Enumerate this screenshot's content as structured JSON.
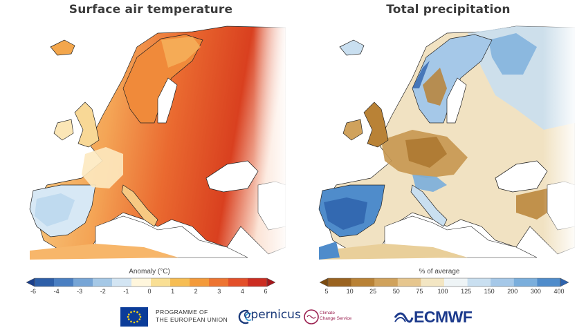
{
  "titles": {
    "left": "Surface air temperature",
    "right": "Total precipitation"
  },
  "colorbars": {
    "left": {
      "label": "Anomaly (°C)",
      "ticks": [
        "-6",
        "-4",
        "-3",
        "-2",
        "-1",
        "0",
        "1",
        "2",
        "3",
        "4",
        "6"
      ],
      "colors": [
        "#1b3f8b",
        "#2e5fa8",
        "#4a7fc2",
        "#76a5d6",
        "#a5c8e6",
        "#d3e5f3",
        "#fff6dc",
        "#f9df94",
        "#f6bd53",
        "#f39a3a",
        "#ed7431",
        "#e34f29",
        "#cc2d22",
        "#a5161b"
      ]
    },
    "right": {
      "label": "% of average",
      "ticks": [
        "5",
        "10",
        "25",
        "50",
        "75",
        "100",
        "125",
        "150",
        "200",
        "300",
        "400"
      ],
      "colors": [
        "#7a4a10",
        "#9a6320",
        "#b98236",
        "#d0a25c",
        "#e6c68e",
        "#f3e6c3",
        "#eef4f6",
        "#c9dff0",
        "#a5c8e8",
        "#7aaedc",
        "#4f8ccb",
        "#2e63ad"
      ]
    }
  },
  "footer": {
    "programme_line1": "PROGRAMME OF",
    "programme_line2": "THE EUROPEAN UNION",
    "copernicus": "opernicus",
    "c3s_line1": "Climate",
    "c3s_line2": "Change Service",
    "ecmwf": "ECMWF"
  }
}
